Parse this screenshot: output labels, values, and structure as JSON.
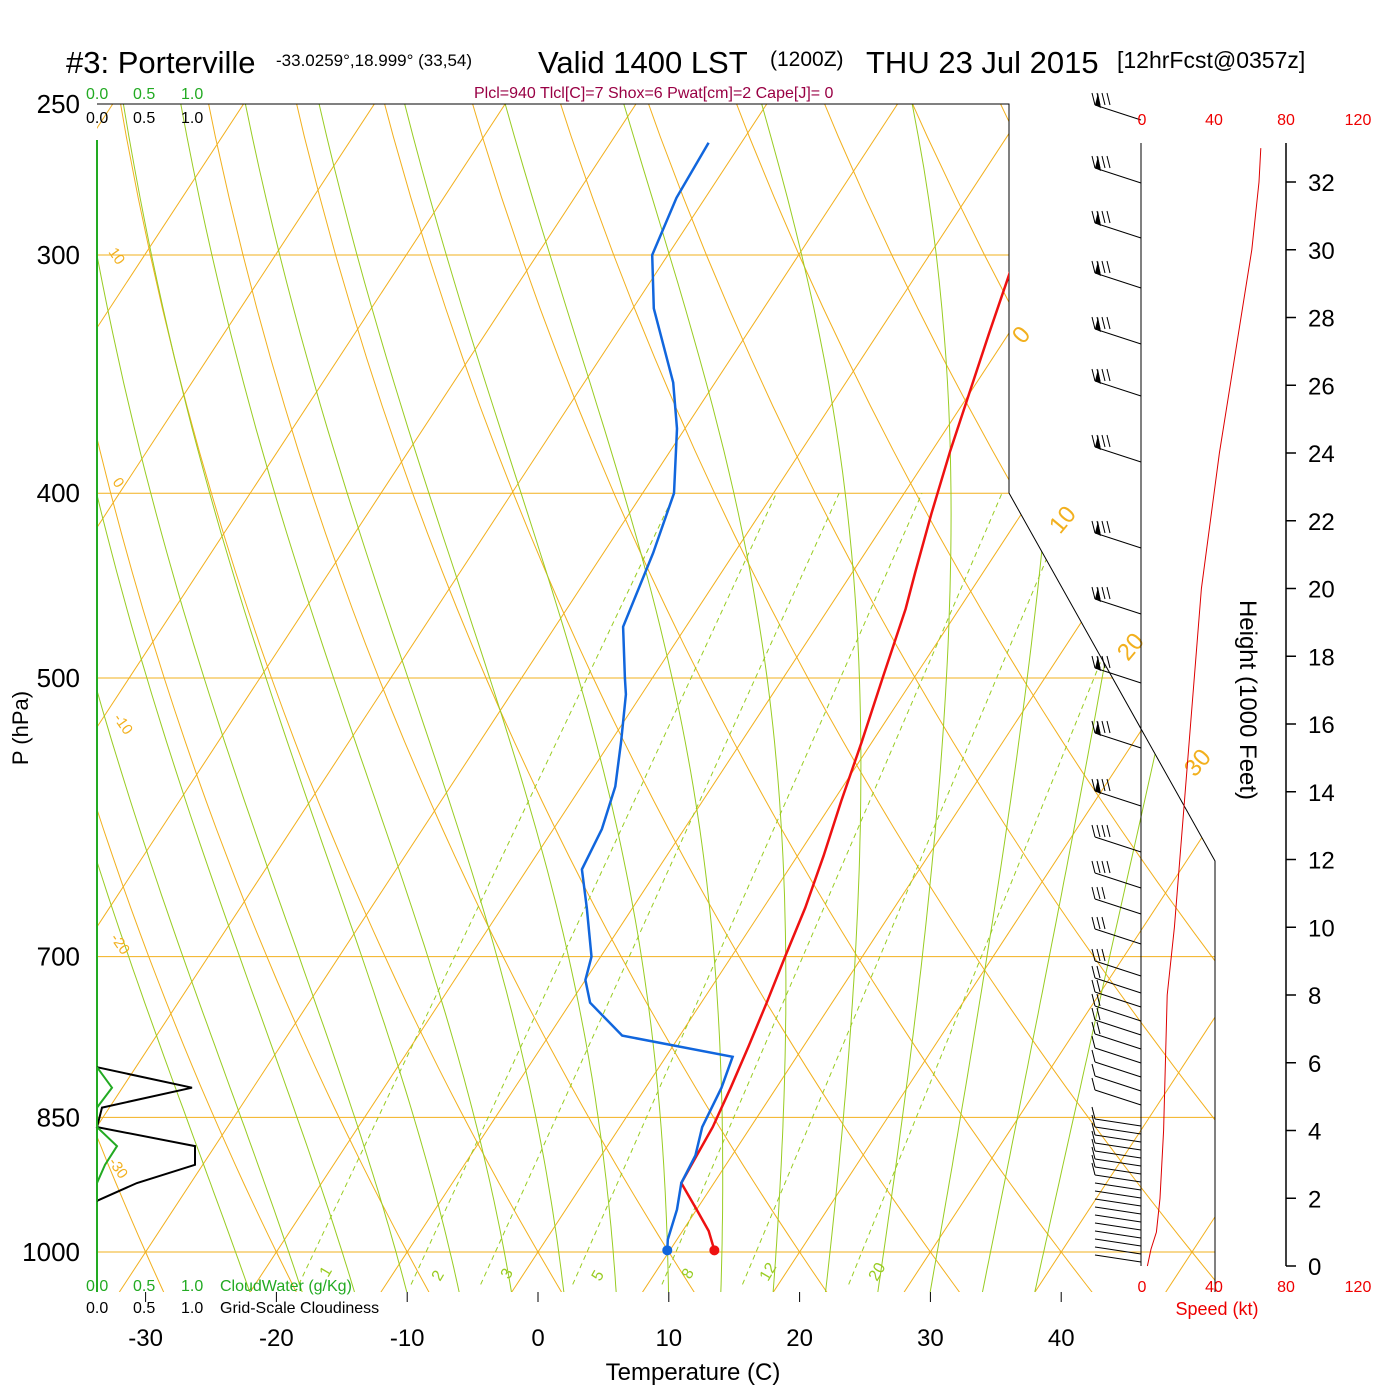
{
  "title": {
    "station": "#3: Porterville",
    "coords": "-33.0259°,18.999° (33,54)",
    "valid": "Valid 1400 LST",
    "zulu": "(1200Z)",
    "date": "THU 23 Jul 2015",
    "forecast": "[12hrFcst@0357z]"
  },
  "indices": "Plcl=940 Tlcl[C]=7 Shox=6 Pwat[cm]=2 Cape[J]= 0",
  "axes": {
    "ylabel": "P (hPa)",
    "xlabel": "Temperature (C)",
    "height_label": "Height (1000 Feet)",
    "speed_label": "Speed (kt)"
  },
  "scales": {
    "cloud_ticks": [
      "0.0",
      "0.5",
      "1.0"
    ],
    "cloudwater_label": "CloudWater (g/Kg)",
    "cloudiness_label": "Grid-Scale Cloudiness",
    "speed_ticks": [
      "0",
      "40",
      "80",
      "120"
    ]
  },
  "colors": {
    "temperature": "#ee1111",
    "dewpoint": "#1166dd",
    "isotherm": "#f2b01e",
    "moist_adiabat": "#99cc22",
    "mixing_ratio": "#99cc22",
    "cloudwater": "#22aa22",
    "speed": "#dd0000"
  },
  "chart_data": {
    "type": "line",
    "title": "Valid 1400 LST (1200Z) THU 23 Jul 2015",
    "xlabel": "Temperature (C)",
    "ylabel": "P (hPa)",
    "xlim": [
      -33,
      46
    ],
    "ylim": [
      1040,
      250
    ],
    "y_scale": "log",
    "pressure_ticks": [
      250,
      300,
      400,
      500,
      700,
      850,
      1000
    ],
    "temp_ticks": [
      -30,
      -20,
      -10,
      0,
      10,
      20,
      30,
      40
    ],
    "height_ticks_kft": [
      0,
      2,
      4,
      6,
      8,
      10,
      12,
      14,
      16,
      18,
      20,
      22,
      24,
      26,
      28,
      30,
      32
    ],
    "isotherm_labels": [
      "10",
      "0",
      "-10",
      "-20",
      "-30",
      "0",
      "10",
      "20",
      "30"
    ],
    "mixing_ratio_labels": [
      "1",
      "2",
      "3",
      "5",
      "8",
      "12",
      "20"
    ],
    "series": [
      {
        "name": "Temperature",
        "points": [
          [
            13.4,
            998
          ],
          [
            12,
            975
          ],
          [
            10,
            950
          ],
          [
            7.5,
            920
          ],
          [
            7.3,
            890
          ],
          [
            7.1,
            860
          ],
          [
            6.5,
            820
          ],
          [
            5.8,
            780
          ],
          [
            5.0,
            740
          ],
          [
            4.1,
            700
          ],
          [
            3.2,
            660
          ],
          [
            2.0,
            620
          ],
          [
            0.6,
            580
          ],
          [
            -0.8,
            540
          ],
          [
            -2.4,
            500
          ],
          [
            -4.1,
            460
          ],
          [
            -5.2,
            440
          ],
          [
            -6.9,
            410
          ],
          [
            -8.6,
            380
          ],
          [
            -10,
            355
          ],
          [
            -11.5,
            330
          ],
          [
            -13.4,
            300
          ],
          [
            -14.4,
            280
          ],
          [
            -14.8,
            262
          ]
        ]
      },
      {
        "name": "Dewpoint",
        "points": [
          [
            9.8,
            998
          ],
          [
            9.3,
            985
          ],
          [
            8.5,
            950
          ],
          [
            7.5,
            920
          ],
          [
            7.2,
            890
          ],
          [
            6.3,
            860
          ],
          [
            5.8,
            820
          ],
          [
            5.1,
            790
          ],
          [
            -4.4,
            770
          ],
          [
            -8.5,
            740
          ],
          [
            -10,
            720
          ],
          [
            -10.7,
            700
          ],
          [
            -13.5,
            660
          ],
          [
            -15.8,
            630
          ],
          [
            -16.3,
            600
          ],
          [
            -17.4,
            570
          ],
          [
            -19.2,
            540
          ],
          [
            -21.2,
            510
          ],
          [
            -22.1,
            500
          ],
          [
            -24.8,
            470
          ],
          [
            -26.2,
            430
          ],
          [
            -27.6,
            400
          ],
          [
            -30.6,
            370
          ],
          [
            -33.2,
            350
          ],
          [
            -38.4,
            320
          ],
          [
            -41.2,
            300
          ],
          [
            -42.2,
            280
          ],
          [
            -42.5,
            262
          ]
        ]
      }
    ],
    "cloud_profile": {
      "pressure_levels": [
        800,
        820,
        840,
        860,
        880,
        900,
        920,
        940
      ],
      "grid_scale_cloudiness": [
        0.0,
        0.95,
        0.05,
        0.0,
        0.98,
        0.98,
        0.4,
        0.0
      ],
      "cloudwater_gkg": [
        0.0,
        0.15,
        0.0,
        0.0,
        0.2,
        0.08,
        0.0,
        0.0
      ]
    },
    "wind_speed_kt": {
      "heights_kft": [
        0,
        0.5,
        1,
        2,
        3,
        4,
        6,
        8,
        10,
        12,
        14,
        16,
        18,
        20,
        22,
        24,
        26,
        28,
        30,
        32,
        33
      ],
      "speed": [
        3,
        5,
        8,
        10,
        11,
        12,
        13,
        14,
        18,
        21,
        24,
        27,
        30,
        33,
        38,
        43,
        49,
        55,
        61,
        65,
        66
      ]
    }
  }
}
